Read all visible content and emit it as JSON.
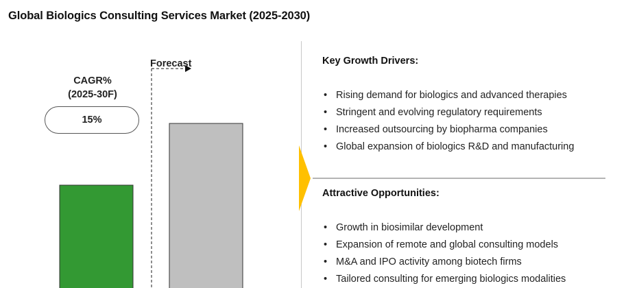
{
  "title": "Global Biologics Consulting Services Market (2025-2030)",
  "cagr": {
    "heading_line1": "CAGR%",
    "heading_line2": "(2025-30F)",
    "value": "15%"
  },
  "forecast_label": "Forecast",
  "colors": {
    "actual_bar": "#339933",
    "forecast_bar": "#bfbfbf",
    "arrow": "#ffc000"
  },
  "chart_data": {
    "type": "bar",
    "categories": [
      "",
      ""
    ],
    "series": [
      {
        "values": [
          100,
          160
        ]
      }
    ],
    "bar_colors": [
      "#339933",
      "#bfbfbf"
    ],
    "ylim": [
      0,
      200
    ],
    "grid": false,
    "title": "",
    "xlabel": "",
    "ylabel": ""
  },
  "key_drivers": {
    "heading": "Key Growth Drivers:",
    "items": [
      "Rising demand for biologics and advanced therapies",
      "Stringent and evolving regulatory requirements",
      "Increased outsourcing by biopharma companies",
      "Global expansion of biologics R&D and manufacturing"
    ]
  },
  "opportunities": {
    "heading": "Attractive Opportunities:",
    "items": [
      "Growth in biosimilar development",
      "Expansion of remote and global consulting models",
      "M&A and IPO activity among biotech firms",
      "Tailored consulting for emerging biologics modalities"
    ]
  }
}
